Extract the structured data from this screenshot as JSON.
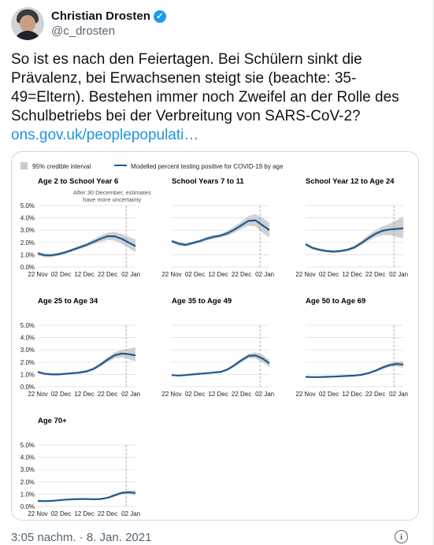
{
  "tweet": {
    "display_name": "Christian Drosten",
    "handle": "@c_drosten",
    "text": "So ist es nach den Feiertagen. Bei Schülern sinkt die Prävalenz, bei Erwachsenen steigt sie (beachte: 35-49=Eltern). Bestehen immer noch Zweifel an der Rolle des Schulbetriebs bei der Verbreitung von SARS-CoV-2?",
    "link": "ons.gov.uk/peoplepopulati…",
    "timestamp": "3:05 nachm. · 8. Jan. 2021",
    "verified_icon": "verified-badge-icon",
    "info_icon": "info-icon"
  },
  "colors": {
    "line": "#1f5a92",
    "band": "#c9c9c9",
    "link": "#1b95e0",
    "grid": "#dcdcdc"
  },
  "chart_data": {
    "type": "line",
    "legend": {
      "band_label": "95% credible interval",
      "line_label": "Modelled percent testing positive for COVID-19 by age"
    },
    "note": [
      "After 30 December, estimates",
      "have more uncertainty"
    ],
    "x_tick_labels": [
      "22 Nov",
      "02 Dec",
      "12 Dec",
      "22 Dec",
      "02 Jan"
    ],
    "x_days": [
      0,
      10,
      20,
      30,
      40
    ],
    "y_ticks": [
      0,
      1,
      2,
      3,
      4,
      5
    ],
    "y_tick_labels": [
      "0.0%",
      "1.0%",
      "2.0%",
      "3.0%",
      "4.0%",
      "5.0%"
    ],
    "ylim": [
      0,
      5
    ],
    "y_unit": "%",
    "uncertainty_marker_day": 38,
    "panels": [
      {
        "title": "Age 2 to School Year 6",
        "days": [
          0,
          3,
          6,
          9,
          12,
          15,
          18,
          21,
          24,
          27,
          30,
          33,
          36,
          39,
          42
        ],
        "values": [
          1.1,
          0.95,
          0.95,
          1.05,
          1.2,
          1.4,
          1.6,
          1.8,
          2.05,
          2.3,
          2.5,
          2.5,
          2.3,
          2.0,
          1.7
        ],
        "lower": [
          0.95,
          0.8,
          0.82,
          0.92,
          1.07,
          1.27,
          1.46,
          1.65,
          1.85,
          2.05,
          2.2,
          2.15,
          1.9,
          1.55,
          1.2
        ],
        "upper": [
          1.25,
          1.1,
          1.08,
          1.18,
          1.33,
          1.53,
          1.74,
          1.95,
          2.25,
          2.55,
          2.8,
          2.85,
          2.7,
          2.45,
          2.25
        ]
      },
      {
        "title": "School Years 7 to 11",
        "days": [
          0,
          3,
          6,
          9,
          12,
          15,
          18,
          21,
          24,
          27,
          30,
          33,
          36,
          39,
          42
        ],
        "values": [
          2.1,
          1.9,
          1.8,
          1.95,
          2.1,
          2.3,
          2.45,
          2.55,
          2.75,
          3.05,
          3.4,
          3.75,
          3.8,
          3.4,
          3.0
        ],
        "lower": [
          1.95,
          1.75,
          1.67,
          1.82,
          1.97,
          2.15,
          2.3,
          2.4,
          2.55,
          2.8,
          3.1,
          3.35,
          3.3,
          2.8,
          2.4
        ],
        "upper": [
          2.25,
          2.05,
          1.93,
          2.08,
          2.23,
          2.45,
          2.6,
          2.7,
          2.95,
          3.3,
          3.7,
          4.15,
          4.3,
          4.0,
          3.6
        ]
      },
      {
        "title": "School Year 12 to Age 24",
        "days": [
          0,
          3,
          6,
          9,
          12,
          15,
          18,
          21,
          24,
          27,
          30,
          33,
          36,
          39,
          42
        ],
        "values": [
          1.85,
          1.55,
          1.4,
          1.3,
          1.25,
          1.3,
          1.4,
          1.6,
          1.95,
          2.35,
          2.7,
          2.95,
          3.05,
          3.1,
          3.15
        ],
        "lower": [
          1.7,
          1.42,
          1.28,
          1.2,
          1.15,
          1.19,
          1.28,
          1.46,
          1.77,
          2.12,
          2.42,
          2.6,
          2.6,
          2.45,
          2.35
        ],
        "upper": [
          2.0,
          1.68,
          1.52,
          1.4,
          1.35,
          1.41,
          1.52,
          1.74,
          2.13,
          2.58,
          2.98,
          3.3,
          3.5,
          3.8,
          4.1
        ]
      },
      {
        "title": "Age 25 to Age 34",
        "days": [
          0,
          3,
          6,
          9,
          12,
          15,
          18,
          21,
          24,
          27,
          30,
          33,
          36,
          39,
          42
        ],
        "values": [
          1.2,
          1.05,
          1.0,
          1.0,
          1.05,
          1.1,
          1.15,
          1.25,
          1.45,
          1.8,
          2.2,
          2.55,
          2.7,
          2.65,
          2.55
        ],
        "lower": [
          1.1,
          0.96,
          0.92,
          0.92,
          0.97,
          1.02,
          1.06,
          1.14,
          1.32,
          1.64,
          2.0,
          2.3,
          2.4,
          2.25,
          2.05
        ],
        "upper": [
          1.3,
          1.14,
          1.08,
          1.08,
          1.13,
          1.18,
          1.24,
          1.36,
          1.58,
          1.96,
          2.4,
          2.8,
          3.0,
          3.1,
          3.2
        ]
      },
      {
        "title": "Age 35 to Age 49",
        "days": [
          0,
          3,
          6,
          9,
          12,
          15,
          18,
          21,
          24,
          27,
          30,
          33,
          36,
          39,
          42
        ],
        "values": [
          0.95,
          0.9,
          0.95,
          1.0,
          1.05,
          1.1,
          1.15,
          1.2,
          1.4,
          1.75,
          2.15,
          2.5,
          2.55,
          2.3,
          1.9
        ],
        "lower": [
          0.88,
          0.83,
          0.88,
          0.93,
          0.98,
          1.03,
          1.07,
          1.12,
          1.3,
          1.62,
          2.0,
          2.3,
          2.3,
          2.0,
          1.6
        ],
        "upper": [
          1.02,
          0.97,
          1.02,
          1.07,
          1.12,
          1.17,
          1.23,
          1.28,
          1.5,
          1.88,
          2.3,
          2.7,
          2.8,
          2.6,
          2.2
        ]
      },
      {
        "title": "Age 50 to Age 69",
        "days": [
          0,
          3,
          6,
          9,
          12,
          15,
          18,
          21,
          24,
          27,
          30,
          33,
          36,
          39,
          42
        ],
        "values": [
          0.8,
          0.78,
          0.78,
          0.8,
          0.82,
          0.85,
          0.88,
          0.9,
          0.97,
          1.1,
          1.3,
          1.55,
          1.75,
          1.85,
          1.8
        ],
        "lower": [
          0.74,
          0.72,
          0.72,
          0.74,
          0.76,
          0.79,
          0.82,
          0.84,
          0.9,
          1.02,
          1.2,
          1.42,
          1.6,
          1.65,
          1.55
        ],
        "upper": [
          0.86,
          0.84,
          0.84,
          0.86,
          0.88,
          0.91,
          0.94,
          0.96,
          1.04,
          1.18,
          1.4,
          1.68,
          1.9,
          2.05,
          2.05
        ]
      },
      {
        "title": "Age 70+",
        "days": [
          0,
          3,
          6,
          9,
          12,
          15,
          18,
          21,
          24,
          27,
          30,
          33,
          36,
          39,
          42
        ],
        "values": [
          0.45,
          0.43,
          0.45,
          0.5,
          0.55,
          0.58,
          0.6,
          0.6,
          0.58,
          0.6,
          0.7,
          0.9,
          1.1,
          1.15,
          1.1
        ],
        "lower": [
          0.4,
          0.38,
          0.4,
          0.45,
          0.5,
          0.53,
          0.55,
          0.55,
          0.53,
          0.55,
          0.63,
          0.8,
          0.98,
          1.0,
          0.9
        ],
        "upper": [
          0.5,
          0.48,
          0.5,
          0.55,
          0.6,
          0.63,
          0.65,
          0.65,
          0.63,
          0.65,
          0.77,
          1.0,
          1.22,
          1.3,
          1.3
        ]
      }
    ]
  }
}
